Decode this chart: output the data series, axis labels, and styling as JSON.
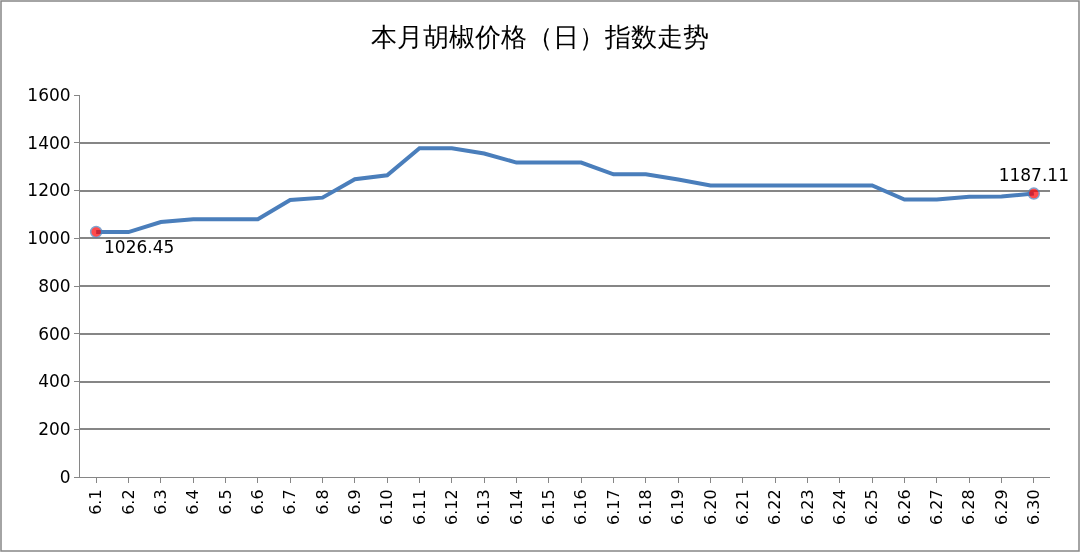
{
  "chart_data": {
    "type": "line",
    "title": "本月胡椒价格（日）指数走势",
    "categories": [
      "6.1",
      "6.2",
      "6.3",
      "6.4",
      "6.5",
      "6.6",
      "6.7",
      "6.8",
      "6.9",
      "6.10",
      "6.11",
      "6.12",
      "6.13",
      "6.14",
      "6.15",
      "6.16",
      "6.17",
      "6.18",
      "6.19",
      "6.20",
      "6.21",
      "6.22",
      "6.23",
      "6.24",
      "6.25",
      "6.26",
      "6.27",
      "6.28",
      "6.29",
      "6.30"
    ],
    "series": [
      {
        "color": "#4a7ebb",
        "values": [
          1026.45,
          1026,
          1068,
          1080,
          1080,
          1080,
          1160,
          1170,
          1247,
          1264,
          1377,
          1377,
          1355,
          1317,
          1317,
          1317,
          1268,
          1268,
          1246,
          1221,
          1221,
          1221,
          1221,
          1221,
          1221,
          1162,
          1162,
          1174,
          1175,
          1187.11
        ],
        "value_labels": [
          "1026.45",
          null,
          null,
          null,
          null,
          null,
          null,
          null,
          null,
          null,
          null,
          null,
          null,
          null,
          null,
          null,
          null,
          null,
          null,
          null,
          null,
          null,
          null,
          null,
          null,
          null,
          null,
          null,
          null,
          "1187.11"
        ]
      }
    ],
    "ylim": [
      0,
      1600
    ],
    "yticks": [
      0,
      200,
      400,
      600,
      800,
      1000,
      1200,
      1400,
      1600
    ],
    "grid": "y",
    "line_style": "solid"
  }
}
